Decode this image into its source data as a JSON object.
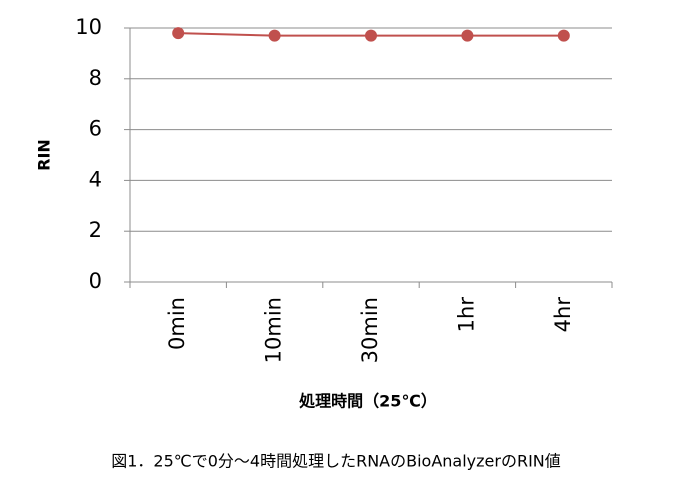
{
  "chart_data": {
    "type": "line",
    "categories": [
      "0min",
      "10min",
      "30min",
      "1hr",
      "4hr"
    ],
    "series": [
      {
        "name": "RIN",
        "color": "#c0504d",
        "values": [
          9.8,
          9.7,
          9.7,
          9.7,
          9.7
        ]
      }
    ],
    "ylim": [
      0,
      10
    ],
    "yticks": [
      0,
      2,
      4,
      6,
      8,
      10
    ],
    "grid": true,
    "ylabel": "RIN",
    "xlabel": "処理時間（25℃）",
    "caption": "図1．25℃で0分～4時間処理したRNAのBioAnalyzerのRIN値"
  }
}
